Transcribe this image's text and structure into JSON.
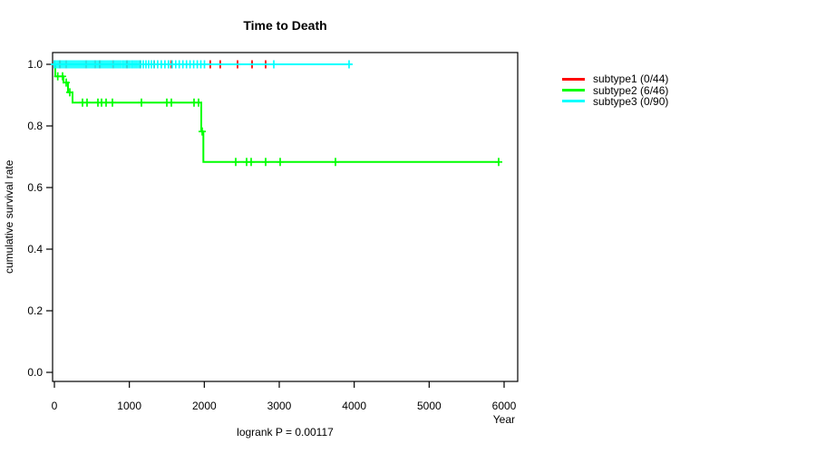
{
  "title": "Time to Death",
  "footnote": "logrank P = 0.00117",
  "legend": [
    {
      "label": "subtype1 (0/44)",
      "color": "#FF0000"
    },
    {
      "label": "subtype2 (6/46)",
      "color": "#00FF00"
    },
    {
      "label": "subtype3 (0/90)",
      "color": "#00FFFF"
    }
  ],
  "chart_data": {
    "type": "line",
    "variant": "kaplan-meier-step-curve",
    "title": "Time to Death",
    "xlabel": "Year",
    "ylabel": "cumulative survival rate",
    "annotation": "logrank P = 0.00117",
    "xlim": [
      0,
      6000
    ],
    "ylim": [
      0.0,
      1.0
    ],
    "xticks": [
      0,
      1000,
      2000,
      3000,
      4000,
      5000,
      6000
    ],
    "yticks": [
      0.0,
      0.2,
      0.4,
      0.6,
      0.8,
      1.0
    ],
    "grid": false,
    "legend_position": "right-outside",
    "series": [
      {
        "name": "subtype1 (0/44)",
        "color": "#FF0000",
        "steps": [
          [
            0,
            1.0
          ],
          [
            2843,
            1.0
          ]
        ],
        "censors": [
          [
            73,
            1.0
          ],
          [
            157,
            1.0
          ],
          [
            423,
            1.0
          ],
          [
            544,
            1.0
          ],
          [
            605,
            1.0
          ],
          [
            786,
            1.0
          ],
          [
            968,
            1.0
          ],
          [
            1149,
            1.0
          ],
          [
            1331,
            1.0
          ],
          [
            1560,
            1.0
          ],
          [
            2080,
            1.0
          ],
          [
            2213,
            1.0
          ],
          [
            2443,
            1.0
          ],
          [
            2637,
            1.0
          ],
          [
            2818,
            1.0
          ]
        ]
      },
      {
        "name": "subtype2 (6/46)",
        "color": "#00FF00",
        "steps": [
          [
            0,
            1.0
          ],
          [
            12,
            1.0
          ],
          [
            12,
            0.961
          ],
          [
            121,
            0.961
          ],
          [
            121,
            0.941
          ],
          [
            181,
            0.941
          ],
          [
            181,
            0.909
          ],
          [
            242,
            0.909
          ],
          [
            242,
            0.876
          ],
          [
            1960,
            0.876
          ],
          [
            1960,
            0.782
          ],
          [
            1988,
            0.782
          ],
          [
            1988,
            0.683
          ],
          [
            5939,
            0.683
          ]
        ],
        "censors": [
          [
            45,
            0.961
          ],
          [
            109,
            0.961
          ],
          [
            157,
            0.941
          ],
          [
            206,
            0.909
          ],
          [
            375,
            0.876
          ],
          [
            435,
            0.876
          ],
          [
            581,
            0.876
          ],
          [
            629,
            0.876
          ],
          [
            689,
            0.876
          ],
          [
            774,
            0.876
          ],
          [
            1161,
            0.876
          ],
          [
            1500,
            0.876
          ],
          [
            1560,
            0.876
          ],
          [
            1863,
            0.876
          ],
          [
            1923,
            0.876
          ],
          [
            1972,
            0.782
          ],
          [
            2419,
            0.683
          ],
          [
            2564,
            0.683
          ],
          [
            2625,
            0.683
          ],
          [
            2818,
            0.683
          ],
          [
            3012,
            0.683
          ],
          [
            3750,
            0.683
          ],
          [
            5927,
            0.683
          ]
        ]
      },
      {
        "name": "subtype3 (0/90)",
        "color": "#00FFFF",
        "steps": [
          [
            0,
            1.0
          ],
          [
            3967,
            1.0
          ]
        ],
        "censors": [
          [
            0,
            1.0
          ],
          [
            12,
            1.0
          ],
          [
            36,
            1.0
          ],
          [
            60,
            1.0
          ],
          [
            85,
            1.0
          ],
          [
            109,
            1.0
          ],
          [
            133,
            1.0
          ],
          [
            157,
            1.0
          ],
          [
            181,
            1.0
          ],
          [
            206,
            1.0
          ],
          [
            230,
            1.0
          ],
          [
            254,
            1.0
          ],
          [
            278,
            1.0
          ],
          [
            302,
            1.0
          ],
          [
            327,
            1.0
          ],
          [
            351,
            1.0
          ],
          [
            375,
            1.0
          ],
          [
            399,
            1.0
          ],
          [
            423,
            1.0
          ],
          [
            448,
            1.0
          ],
          [
            472,
            1.0
          ],
          [
            496,
            1.0
          ],
          [
            520,
            1.0
          ],
          [
            544,
            1.0
          ],
          [
            569,
            1.0
          ],
          [
            593,
            1.0
          ],
          [
            617,
            1.0
          ],
          [
            641,
            1.0
          ],
          [
            665,
            1.0
          ],
          [
            690,
            1.0
          ],
          [
            714,
            1.0
          ],
          [
            738,
            1.0
          ],
          [
            762,
            1.0
          ],
          [
            787,
            1.0
          ],
          [
            811,
            1.0
          ],
          [
            835,
            1.0
          ],
          [
            859,
            1.0
          ],
          [
            883,
            1.0
          ],
          [
            908,
            1.0
          ],
          [
            932,
            1.0
          ],
          [
            956,
            1.0
          ],
          [
            980,
            1.0
          ],
          [
            1004,
            1.0
          ],
          [
            1029,
            1.0
          ],
          [
            1053,
            1.0
          ],
          [
            1077,
            1.0
          ],
          [
            1101,
            1.0
          ],
          [
            1126,
            1.0
          ],
          [
            1150,
            1.0
          ],
          [
            1186,
            1.0
          ],
          [
            1222,
            1.0
          ],
          [
            1258,
            1.0
          ],
          [
            1294,
            1.0
          ],
          [
            1330,
            1.0
          ],
          [
            1378,
            1.0
          ],
          [
            1426,
            1.0
          ],
          [
            1474,
            1.0
          ],
          [
            1522,
            1.0
          ],
          [
            1570,
            1.0
          ],
          [
            1618,
            1.0
          ],
          [
            1666,
            1.0
          ],
          [
            1714,
            1.0
          ],
          [
            1762,
            1.0
          ],
          [
            1810,
            1.0
          ],
          [
            1858,
            1.0
          ],
          [
            1906,
            1.0
          ],
          [
            1954,
            1.0
          ],
          [
            2002,
            1.0
          ],
          [
            2927,
            1.0
          ],
          [
            3931,
            1.0
          ]
        ]
      }
    ]
  }
}
